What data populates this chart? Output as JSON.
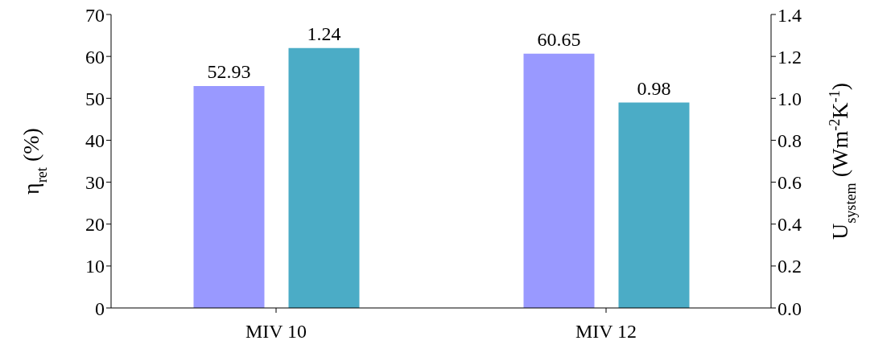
{
  "chart_data": {
    "type": "bar",
    "categories": [
      "MIV 10",
      "MIV 12"
    ],
    "series": [
      {
        "color": "#9999ff",
        "values": [
          52.93,
          60.65
        ]
      },
      {
        "color": "#4bacc6",
        "values": [
          1.24,
          0.98
        ],
        "axis": "y2"
      }
    ],
    "ylabel": "η$_{ret}$ (%)",
    "y2label": "U$_{system}$ (Wm$^{-2}$K$^{-1}$)",
    "ylim": [
      0,
      70
    ],
    "yticks": [
      0,
      10,
      20,
      30,
      40,
      50,
      60,
      70
    ],
    "y2lim": [
      0,
      1.4
    ],
    "y2ticks": [
      {
        "value": 0,
        "label": "0.0"
      },
      0.2,
      0.4,
      0.6,
      0.8,
      {
        "value": 1,
        "label": "1.0"
      },
      1.2,
      1.4
    ],
    "data_labels": true
  }
}
